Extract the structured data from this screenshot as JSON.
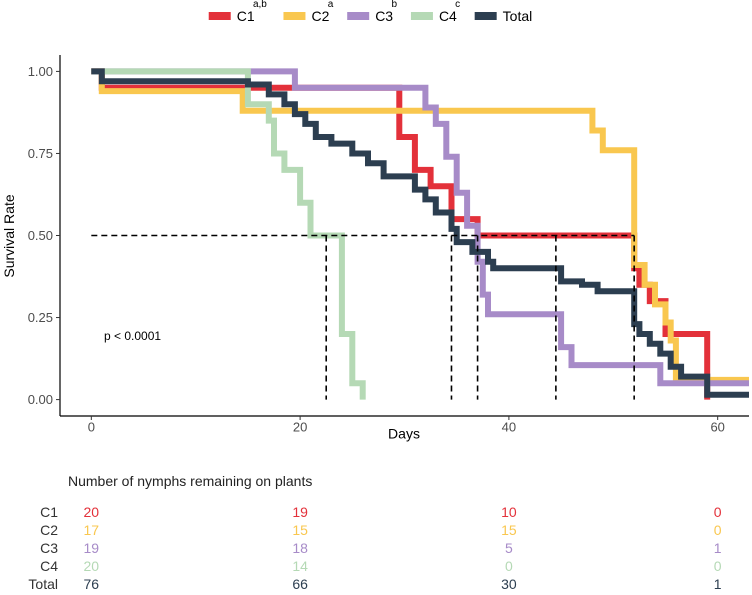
{
  "chart_data": {
    "type": "line",
    "subtype": "kaplan-meier",
    "xlabel": "Days",
    "ylabel": "Survival Rate",
    "xlim": [
      -3,
      63
    ],
    "ylim": [
      -0.05,
      1.05
    ],
    "xticks": [
      0,
      20,
      40,
      60
    ],
    "yticks": [
      0.0,
      0.25,
      0.5,
      0.75,
      1.0
    ],
    "ytick_labels": [
      "0.00",
      "0.25",
      "0.50",
      "0.75",
      "1.00"
    ],
    "grid": false,
    "legend_position": "top",
    "annotation": "p < 0.0001",
    "series": [
      {
        "name": "C1",
        "superscript": "a,b",
        "color": "#E3313A",
        "steps": [
          [
            0,
            1.0
          ],
          [
            1,
            0.95
          ],
          [
            29.5,
            0.8
          ],
          [
            31,
            0.7
          ],
          [
            32.5,
            0.65
          ],
          [
            34.5,
            0.55
          ],
          [
            37,
            0.5
          ],
          [
            52,
            0.4
          ],
          [
            52.5,
            0.35
          ],
          [
            53.5,
            0.3
          ],
          [
            55,
            0.2
          ],
          [
            59,
            0.0
          ]
        ]
      },
      {
        "name": "C2",
        "superscript": "a",
        "color": "#F9C74F",
        "steps": [
          [
            0,
            1.0
          ],
          [
            1,
            0.94
          ],
          [
            14.5,
            0.88
          ],
          [
            48,
            0.82
          ],
          [
            49,
            0.76
          ],
          [
            52,
            0.41
          ],
          [
            53,
            0.35
          ],
          [
            54,
            0.29
          ],
          [
            55,
            0.235
          ],
          [
            55.5,
            0.18
          ],
          [
            56,
            0.06
          ],
          [
            63,
            0.06
          ]
        ]
      },
      {
        "name": "C3",
        "superscript": "b",
        "color": "#A78BC8",
        "steps": [
          [
            0,
            1.0
          ],
          [
            15.5,
            1.0
          ],
          [
            19.5,
            0.95
          ],
          [
            32,
            0.89
          ],
          [
            33,
            0.84
          ],
          [
            34,
            0.74
          ],
          [
            35,
            0.63
          ],
          [
            36,
            0.53
          ],
          [
            37,
            0.42
          ],
          [
            37.5,
            0.32
          ],
          [
            38,
            0.26
          ],
          [
            45,
            0.16
          ],
          [
            46,
            0.105
          ],
          [
            54.5,
            0.05
          ],
          [
            63,
            0.05
          ]
        ]
      },
      {
        "name": "C4",
        "superscript": "c",
        "color": "#B5D9B5",
        "steps": [
          [
            0,
            1.0
          ],
          [
            15,
            0.9
          ],
          [
            17,
            0.85
          ],
          [
            17.5,
            0.75
          ],
          [
            18.5,
            0.7
          ],
          [
            20,
            0.6
          ],
          [
            21,
            0.5
          ],
          [
            24,
            0.2
          ],
          [
            25,
            0.05
          ],
          [
            26,
            0.0
          ]
        ]
      },
      {
        "name": "Total",
        "superscript": "",
        "color": "#2C3E50",
        "steps": [
          [
            0,
            1.0
          ],
          [
            1,
            0.97
          ],
          [
            15,
            0.96
          ],
          [
            17,
            0.93
          ],
          [
            18.5,
            0.9
          ],
          [
            19.5,
            0.87
          ],
          [
            20.5,
            0.84
          ],
          [
            21.5,
            0.8
          ],
          [
            23,
            0.78
          ],
          [
            25,
            0.75
          ],
          [
            26.5,
            0.72
          ],
          [
            28,
            0.68
          ],
          [
            31,
            0.64
          ],
          [
            32,
            0.61
          ],
          [
            33,
            0.57
          ],
          [
            34.5,
            0.52
          ],
          [
            35,
            0.48
          ],
          [
            36.5,
            0.45
          ],
          [
            38,
            0.42
          ],
          [
            38.5,
            0.4
          ],
          [
            45,
            0.36
          ],
          [
            47,
            0.35
          ],
          [
            48.5,
            0.33
          ],
          [
            52,
            0.23
          ],
          [
            52.5,
            0.2
          ],
          [
            53.5,
            0.17
          ],
          [
            54.5,
            0.14
          ],
          [
            55.5,
            0.1
          ],
          [
            56.5,
            0.07
          ],
          [
            59,
            0.015
          ],
          [
            63,
            0.015
          ]
        ]
      }
    ],
    "median_lines": [
      22.5,
      34.5,
      37,
      44.5,
      52
    ],
    "risk_table": {
      "title": "Number of nymphs remaining on plants",
      "time_points": [
        0,
        20,
        40,
        60
      ],
      "rows": [
        {
          "label": "C1",
          "values": [
            "20",
            "19",
            "10",
            "0"
          ]
        },
        {
          "label": "C2",
          "values": [
            "17",
            "15",
            "15",
            "0"
          ]
        },
        {
          "label": "C3",
          "values": [
            "19",
            "18",
            "5",
            "1"
          ]
        },
        {
          "label": "C4",
          "values": [
            "20",
            "14",
            "0",
            "0"
          ]
        },
        {
          "label": "Total",
          "values": [
            "76",
            "66",
            "30",
            "1"
          ]
        }
      ]
    }
  }
}
